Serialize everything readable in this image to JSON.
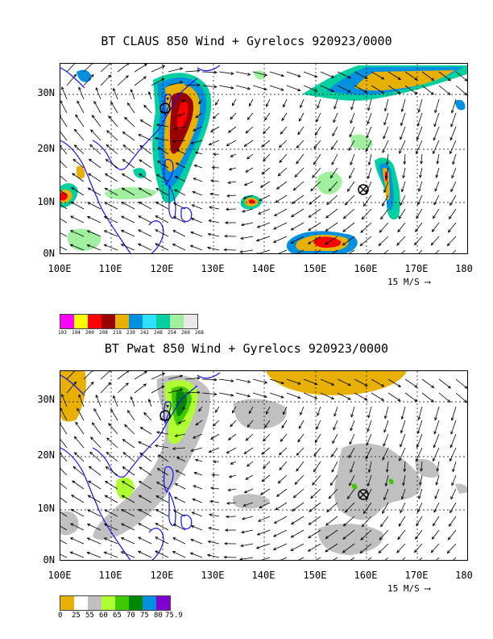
{
  "panels": [
    {
      "title": "BT CLAUS 850 Wind + Gyrelocs 920923/0000",
      "lat_labels": [
        "30N",
        "20N",
        "10N",
        "0N"
      ],
      "lon_labels": [
        "100E",
        "110E",
        "120E",
        "130E",
        "140E",
        "150E",
        "160E",
        "170E",
        "180"
      ],
      "vector_ref": "15 M/S",
      "colorbar_colors": [
        "#ff00ff",
        "#ffff00",
        "#ff0000",
        "#990000",
        "#e8b000",
        "#0090e0",
        "#30e0ff",
        "#00d0a0",
        "#a0f0a0",
        "#e8e8e8"
      ],
      "colorbar_labels": [
        "193",
        "194",
        "200",
        "208",
        "218",
        "230",
        "242",
        "248",
        "254",
        "260",
        "268"
      ]
    },
    {
      "title": "BT Pwat 850 Wind + Gyrelocs 920923/0000",
      "lat_labels": [
        "30N",
        "20N",
        "10N",
        "0N"
      ],
      "lon_labels": [
        "100E",
        "110E",
        "120E",
        "130E",
        "140E",
        "150E",
        "160E",
        "170E",
        "180"
      ],
      "vector_ref": "15 M/S",
      "colorbar_colors": [
        "#e8b000",
        "#ffffff",
        "#c0c0c0",
        "#b0ff30",
        "#40c800",
        "#008800",
        "#0090e0",
        "#8000d0"
      ],
      "colorbar_labels": [
        "0",
        "25",
        "55",
        "60",
        "65",
        "70",
        "75",
        "80",
        "75.9"
      ]
    }
  ]
}
